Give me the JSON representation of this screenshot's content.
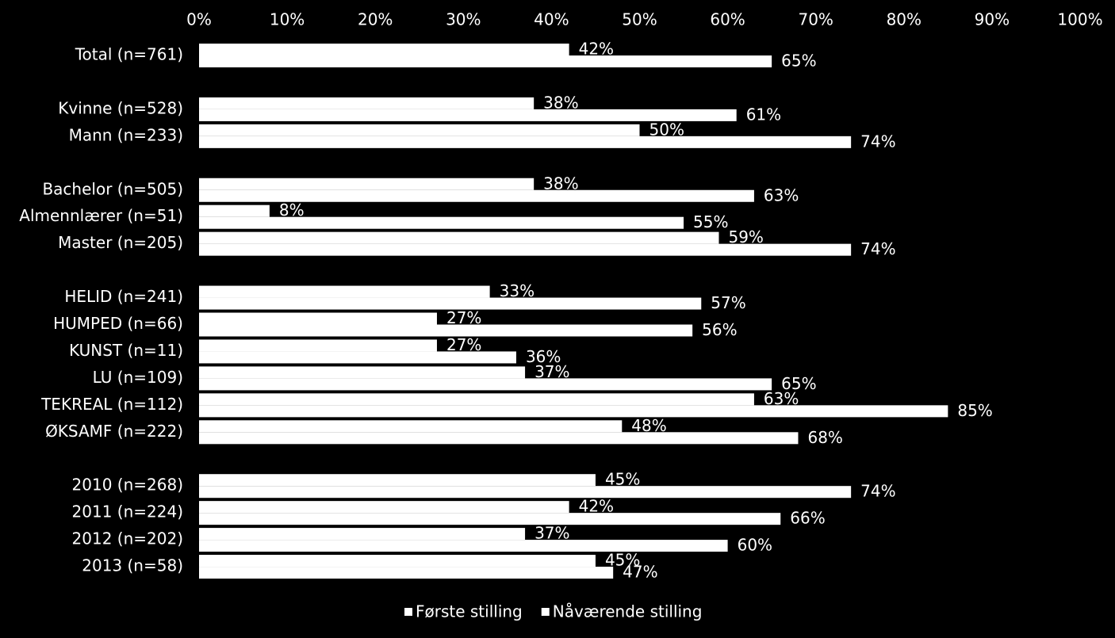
{
  "chart_data": {
    "type": "grouped-hbar",
    "categories": [
      "Total (n=761)",
      null,
      "Kvinne (n=528)",
      "Mann (n=233)",
      null,
      "Bachelor (n=505)",
      "Almennlærer (n=51)",
      "Master (n=205)",
      null,
      "HELID (n=241)",
      "HUMPED (n=66)",
      "KUNST (n=11)",
      "LU (n=109)",
      "TEKREAL (n=112)",
      "ØKSAMF (n=222)",
      null,
      "2010 (n=268)",
      "2011 (n=224)",
      "2012 (n=202)",
      "2013 (n=58)"
    ],
    "series": [
      {
        "name": "Første stilling",
        "color": "#ffffff",
        "values": [
          42,
          null,
          38,
          50,
          null,
          38,
          8,
          59,
          null,
          33,
          27,
          27,
          37,
          63,
          48,
          null,
          45,
          42,
          37,
          45
        ],
        "value_labels": [
          "42%",
          null,
          "38%",
          "50%",
          null,
          "38%",
          "8%",
          "59%",
          null,
          "33%",
          "27%",
          "27%",
          "37%",
          "63%",
          "48%",
          null,
          "45%",
          "42%",
          "37%",
          "45%"
        ]
      },
      {
        "name": "Nåværende stilling",
        "color": "#ffffff",
        "values": [
          65,
          null,
          61,
          74,
          null,
          63,
          55,
          74,
          null,
          57,
          56,
          36,
          65,
          85,
          68,
          null,
          74,
          66,
          60,
          47
        ],
        "value_labels": [
          "65%",
          null,
          "61%",
          "74%",
          null,
          "63%",
          "55%",
          "74%",
          null,
          "57%",
          "56%",
          "36%",
          "65%",
          "85%",
          "68%",
          null,
          "74%",
          "66%",
          "60%",
          "47%"
        ]
      }
    ],
    "xlim": [
      0,
      100
    ],
    "xticks": [
      {
        "value": 0,
        "label": "0%"
      },
      {
        "value": 10,
        "label": "10%"
      },
      {
        "value": 20,
        "label": "20%"
      },
      {
        "value": 30,
        "label": "30%"
      },
      {
        "value": 40,
        "label": "40%"
      },
      {
        "value": 50,
        "label": "50%"
      },
      {
        "value": 60,
        "label": "60%"
      },
      {
        "value": 70,
        "label": "70%"
      },
      {
        "value": 80,
        "label": "80%"
      },
      {
        "value": 90,
        "label": "90%"
      },
      {
        "value": 100,
        "label": "100%"
      }
    ],
    "legend": "bottom"
  }
}
